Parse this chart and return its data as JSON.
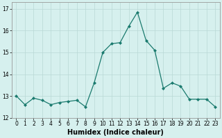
{
  "x": [
    0,
    1,
    2,
    3,
    4,
    5,
    6,
    7,
    8,
    9,
    10,
    11,
    12,
    13,
    14,
    15,
    16,
    17,
    18,
    19,
    20,
    21,
    22,
    23
  ],
  "y": [
    13.0,
    12.6,
    12.9,
    12.8,
    12.6,
    12.7,
    12.75,
    12.8,
    12.5,
    13.6,
    15.0,
    15.4,
    15.45,
    16.2,
    16.85,
    15.55,
    15.1,
    13.35,
    13.6,
    13.45,
    12.85,
    12.85,
    12.85,
    12.5
  ],
  "line_color": "#1a7a6e",
  "marker": "D",
  "markersize": 2.0,
  "linewidth": 0.9,
  "background_color": "#d6f0ee",
  "grid_color": "#b8d8d5",
  "xlabel": "Humidex (Indice chaleur)",
  "xlabel_fontsize": 7,
  "ylim": [
    12.0,
    17.3
  ],
  "xlim": [
    -0.5,
    23.5
  ],
  "yticks": [
    12,
    13,
    14,
    15,
    16,
    17
  ],
  "xticks": [
    0,
    1,
    2,
    3,
    4,
    5,
    6,
    7,
    8,
    9,
    10,
    11,
    12,
    13,
    14,
    15,
    16,
    17,
    18,
    19,
    20,
    21,
    22,
    23
  ],
  "tick_fontsize": 5.5,
  "figsize": [
    3.2,
    2.0
  ],
  "dpi": 100
}
